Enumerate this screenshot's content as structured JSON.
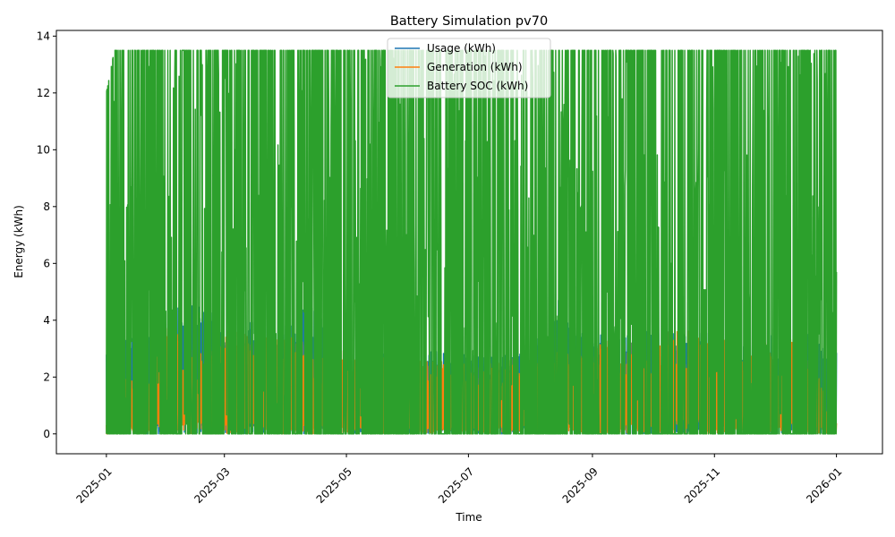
{
  "chart_data": {
    "type": "line",
    "title": "Battery Simulation pv70",
    "xlabel": "Time",
    "ylabel": "Energy (kWh)",
    "x_range": [
      "2024-12-07",
      "2026-01-24"
    ],
    "ylim": [
      -0.7,
      14.2
    ],
    "x_ticks": [
      "2025-01",
      "2025-03",
      "2025-05",
      "2025-07",
      "2025-09",
      "2025-11",
      "2026-01"
    ],
    "y_ticks": [
      "0",
      "2",
      "4",
      "6",
      "8",
      "10",
      "12",
      "14"
    ],
    "grid": false,
    "legend_position": "top-center",
    "series": [
      {
        "name": "Usage (kWh)",
        "color": "#1f77b4",
        "x": [
          "2025-01-01",
          "2025-01-05",
          "2025-01-15",
          "2025-02-01",
          "2025-02-15",
          "2025-03-01",
          "2025-03-15",
          "2025-04-01",
          "2025-04-15",
          "2025-05-01",
          "2025-05-15",
          "2025-06-01",
          "2025-06-15",
          "2025-07-01",
          "2025-07-15",
          "2025-08-01",
          "2025-08-15",
          "2025-09-01",
          "2025-09-15",
          "2025-10-01",
          "2025-10-15",
          "2025-11-01",
          "2025-11-15",
          "2025-12-01",
          "2025-12-15",
          "2026-01-01"
        ],
        "y": [
          3.3,
          5.2,
          3.8,
          4.2,
          5.0,
          3.8,
          4.0,
          4.2,
          4.5,
          3.0,
          3.0,
          3.0,
          3.0,
          2.8,
          2.8,
          3.0,
          4.7,
          3.5,
          3.5,
          3.7,
          3.6,
          3.7,
          3.8,
          3.6,
          3.7,
          3.0
        ]
      },
      {
        "name": "Generation (kWh)",
        "color": "#ff7f0e",
        "x": [
          "2025-01-01",
          "2025-01-05",
          "2025-01-15",
          "2025-02-01",
          "2025-02-15",
          "2025-03-01",
          "2025-03-15",
          "2025-04-01",
          "2025-04-15",
          "2025-05-01",
          "2025-05-15",
          "2025-06-01",
          "2025-06-15",
          "2025-07-01",
          "2025-07-15",
          "2025-08-01",
          "2025-08-15",
          "2025-09-01",
          "2025-09-15",
          "2025-10-01",
          "2025-10-15",
          "2025-11-01",
          "2025-11-15",
          "2025-12-01",
          "2025-12-15",
          "2026-01-01"
        ],
        "y": [
          0.5,
          2.5,
          1.8,
          3.8,
          3.0,
          3.8,
          3.6,
          3.5,
          3.1,
          2.9,
          2.8,
          2.6,
          2.6,
          2.5,
          2.5,
          2.8,
          3.0,
          3.2,
          3.4,
          3.5,
          3.7,
          3.7,
          3.0,
          3.5,
          3.5,
          0.5
        ]
      },
      {
        "name": "Battery SOC (kWh)",
        "color": "#2ca02c",
        "x": [
          "2025-01-01",
          "2025-01-05",
          "2025-01-15",
          "2025-02-01",
          "2025-02-15",
          "2025-03-01",
          "2025-03-15",
          "2025-04-01",
          "2025-04-15",
          "2025-05-01",
          "2025-05-15",
          "2025-06-01",
          "2025-06-15",
          "2025-07-01",
          "2025-07-15",
          "2025-08-01",
          "2025-08-15",
          "2025-09-01",
          "2025-09-15",
          "2025-10-01",
          "2025-10-15",
          "2025-11-01",
          "2025-11-15",
          "2025-12-01",
          "2025-12-15",
          "2026-01-01"
        ],
        "y": [
          12.0,
          13.5,
          13.5,
          13.5,
          13.5,
          13.5,
          13.5,
          13.5,
          13.5,
          13.5,
          13.5,
          13.5,
          13.5,
          13.5,
          13.5,
          13.5,
          13.5,
          13.5,
          13.5,
          13.5,
          13.5,
          13.5,
          13.5,
          13.5,
          13.5,
          13.5
        ],
        "min": 0
      }
    ]
  }
}
